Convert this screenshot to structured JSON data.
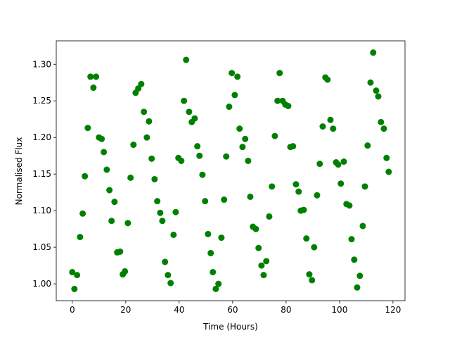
{
  "chart_data": {
    "type": "scatter",
    "color": "#008000",
    "x_label": "Time (Hours)",
    "y_label": "Normalised Flux",
    "xlim": [
      -6,
      124.5
    ],
    "ylim": [
      0.977,
      1.332
    ],
    "xticks": [
      0,
      20,
      40,
      60,
      80,
      100,
      120
    ],
    "yticks": [
      {
        "value": 1.0,
        "label": "1.00"
      },
      {
        "value": 1.05,
        "label": "1.05"
      },
      {
        "value": 1.1,
        "label": "1.10"
      },
      {
        "value": 1.15,
        "label": "1.15"
      },
      {
        "value": 1.2,
        "label": "1.20"
      },
      {
        "value": 1.25,
        "label": "1.25"
      },
      {
        "value": 1.3,
        "label": "1.30"
      }
    ],
    "x": [
      0,
      0.8,
      1.8,
      2.9,
      3.9,
      4.7,
      5.8,
      6.8,
      7.9,
      8.9,
      10,
      11,
      11.8,
      12.9,
      13.9,
      14.7,
      15.8,
      16.8,
      17.9,
      18.9,
      19.7,
      20.8,
      21.8,
      22.9,
      23.7,
      24.7,
      25.8,
      26.8,
      27.9,
      28.7,
      29.7,
      30.8,
      31.8,
      32.9,
      33.7,
      34.7,
      35.8,
      36.8,
      37.9,
      38.7,
      39.7,
      40.8,
      41.8,
      42.6,
      43.7,
      44.7,
      45.8,
      46.8,
      47.6,
      48.7,
      49.7,
      50.8,
      51.8,
      52.6,
      53.7,
      54.7,
      55.8,
      56.8,
      57.6,
      58.7,
      59.7,
      60.8,
      61.8,
      62.6,
      63.7,
      64.7,
      65.8,
      66.6,
      67.6,
      68.7,
      69.7,
      70.8,
      71.6,
      72.6,
      73.7,
      74.7,
      75.8,
      76.8,
      77.6,
      78.7,
      79.7,
      80.8,
      81.6,
      82.6,
      83.7,
      84.7,
      85.5,
      86.6,
      87.6,
      88.7,
      89.7,
      90.5,
      91.6,
      92.6,
      93.7,
      94.7,
      95.5,
      96.6,
      97.6,
      98.7,
      99.5,
      100.5,
      101.6,
      102.6,
      103.7,
      104.5,
      105.5,
      106.6,
      107.6,
      108.7,
      109.5,
      110.5,
      111.6,
      112.6,
      113.7,
      114.5,
      115.5,
      116.6,
      117.6,
      118.4
    ],
    "values": [
      1.016,
      0.993,
      1.012,
      1.064,
      1.096,
      1.147,
      1.213,
      1.283,
      1.268,
      1.283,
      1.2,
      1.198,
      1.18,
      1.156,
      1.128,
      1.086,
      1.112,
      1.043,
      1.044,
      1.013,
      1.017,
      1.083,
      1.145,
      1.19,
      1.261,
      1.267,
      1.273,
      1.235,
      1.2,
      1.222,
      1.171,
      1.143,
      1.113,
      1.097,
      1.086,
      1.03,
      1.012,
      1.001,
      1.067,
      1.098,
      1.172,
      1.168,
      1.25,
      1.306,
      1.235,
      1.221,
      1.226,
      1.188,
      1.175,
      1.149,
      1.113,
      1.068,
      1.042,
      1.016,
      0.993,
      1.0,
      1.063,
      1.115,
      1.174,
      1.242,
      1.288,
      1.258,
      1.283,
      1.212,
      1.187,
      1.198,
      1.168,
      1.119,
      1.078,
      1.075,
      1.049,
      1.025,
      1.012,
      1.031,
      1.092,
      1.133,
      1.202,
      1.25,
      1.288,
      1.25,
      1.245,
      1.243,
      1.187,
      1.188,
      1.136,
      1.126,
      1.1,
      1.101,
      1.062,
      1.013,
      1.005,
      1.05,
      1.121,
      1.164,
      1.215,
      1.282,
      1.279,
      1.224,
      1.212,
      1.166,
      1.163,
      1.137,
      1.167,
      1.109,
      1.107,
      1.061,
      1.033,
      0.995,
      1.011,
      1.079,
      1.133,
      1.189,
      1.275,
      1.316,
      1.264,
      1.256,
      1.221,
      1.212,
      1.172,
      1.153
    ]
  }
}
